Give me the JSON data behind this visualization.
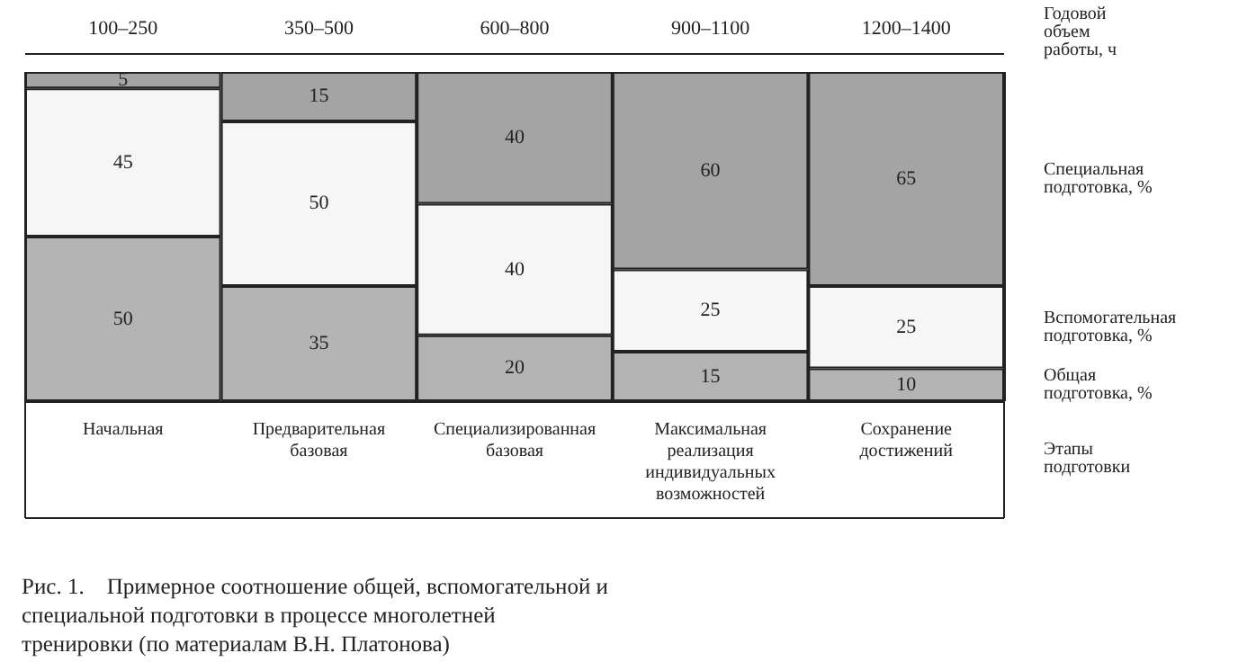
{
  "chart_data": {
    "type": "bar",
    "stacked": true,
    "data_labels": true,
    "legend": false,
    "categories": [
      "Начальная",
      "Предварительная базовая",
      "Специализированная базовая",
      "Максимальная реализация индивидуальных возможностей",
      "Сохранение достижений"
    ],
    "xlabel": "Этапы подготовки",
    "series": [
      {
        "name": "Общая подготовка, %",
        "color": "#b4b4b4",
        "values": [
          50,
          35,
          20,
          15,
          10
        ]
      },
      {
        "name": "Вспомогательная подготовка, %",
        "color": "#f6f6f6",
        "values": [
          45,
          50,
          40,
          25,
          25
        ]
      },
      {
        "name": "Специальная подготовка, %",
        "color": "#a4a4a4",
        "values": [
          5,
          15,
          40,
          60,
          65
        ]
      }
    ],
    "annotations": [
      "100–250",
      "350–500",
      "600–800",
      "900–1100",
      "1200–1400",
      "Годовой объем работы, ч",
      "Рис. 1.    Примерное соотношение общей, вспомогательной и специальной подготовки в процессе многолетней тренировки (по материалам В.Н. Платонова)"
    ]
  }
}
